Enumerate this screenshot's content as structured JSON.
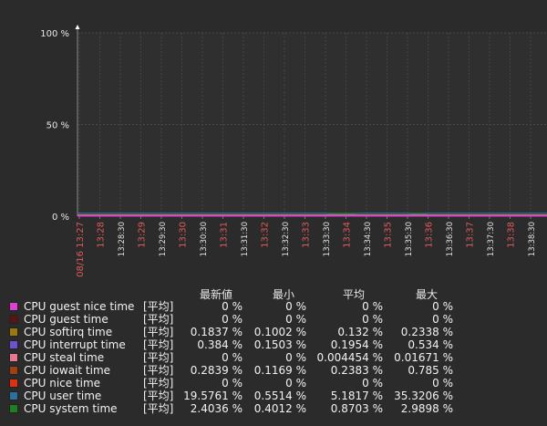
{
  "chart_data": {
    "type": "line",
    "title": "",
    "xlabel": "",
    "ylabel": "",
    "ylim": [
      0,
      100
    ],
    "y_ticks": [
      "0 %",
      "50 %",
      "100 %"
    ],
    "x_ticks": [
      {
        "label": "08/16 13:27",
        "major": true
      },
      {
        "label": "13:28",
        "major": true
      },
      {
        "label": "13:28:30",
        "major": false
      },
      {
        "label": "13:29",
        "major": true
      },
      {
        "label": "13:29:30",
        "major": false
      },
      {
        "label": "13:30",
        "major": true
      },
      {
        "label": "13:30:30",
        "major": false
      },
      {
        "label": "13:31",
        "major": true
      },
      {
        "label": "13:31:30",
        "major": false
      },
      {
        "label": "13:32",
        "major": true
      },
      {
        "label": "13:32:30",
        "major": false
      },
      {
        "label": "13:33",
        "major": true
      },
      {
        "label": "13:33:30",
        "major": false
      },
      {
        "label": "13:34",
        "major": true
      },
      {
        "label": "13:34:30",
        "major": false
      },
      {
        "label": "13:35",
        "major": true
      },
      {
        "label": "13:35:30",
        "major": false
      },
      {
        "label": "13:36",
        "major": true
      },
      {
        "label": "13:36:30",
        "major": false
      },
      {
        "label": "13:37",
        "major": true
      },
      {
        "label": "13:37:30",
        "major": false
      },
      {
        "label": "13:38",
        "major": true
      },
      {
        "label": "13:38:30",
        "major": false
      }
    ],
    "grid": true,
    "legend_position": "bottom",
    "legend_headers": {
      "last": "最新値",
      "min": "最小",
      "avg": "平均",
      "max": "最大"
    },
    "series": [
      {
        "name": "CPU guest nice time",
        "color": "#e040d0",
        "func": "[平均]",
        "last": "0 %",
        "min": "0 %",
        "avg": "0 %",
        "max": "0 %",
        "level": 0
      },
      {
        "name": "CPU guest time",
        "color": "#5a1414",
        "func": "[平均]",
        "last": "0 %",
        "min": "0 %",
        "avg": "0 %",
        "max": "0 %",
        "level": 0
      },
      {
        "name": "CPU softirq time",
        "color": "#9a7a10",
        "func": "[平均]",
        "last": "0.1837 %",
        "min": "0.1002 %",
        "avg": "0.132 %",
        "max": "0.2338 %",
        "level": 0.132
      },
      {
        "name": "CPU interrupt time",
        "color": "#7050d0",
        "func": "[平均]",
        "last": "0.384 %",
        "min": "0.1503 %",
        "avg": "0.1954 %",
        "max": "0.534 %",
        "level": 0.1954
      },
      {
        "name": "CPU steal time",
        "color": "#e87890",
        "func": "[平均]",
        "last": "0 %",
        "min": "0 %",
        "avg": "0.004454 %",
        "max": "0.01671 %",
        "level": 0.004454
      },
      {
        "name": "CPU iowait time",
        "color": "#a04010",
        "func": "[平均]",
        "last": "0.2839 %",
        "min": "0.1169 %",
        "avg": "0.2383 %",
        "max": "0.785 %",
        "level": 0.2383
      },
      {
        "name": "CPU nice time",
        "color": "#e03010",
        "func": "[平均]",
        "last": "0 %",
        "min": "0 %",
        "avg": "0 %",
        "max": "0 %",
        "level": 0
      },
      {
        "name": "CPU user time",
        "color": "#2a70a0",
        "func": "[平均]",
        "last": "19.5761 %",
        "min": "0.5514 %",
        "avg": "5.1817 %",
        "max": "35.3206 %",
        "level": 0.6
      },
      {
        "name": "CPU system time",
        "color": "#208020",
        "func": "[平均]",
        "last": "2.4036 %",
        "min": "0.4012 %",
        "avg": "0.8703 %",
        "max": "2.9898 %",
        "level": 0.6
      }
    ]
  }
}
